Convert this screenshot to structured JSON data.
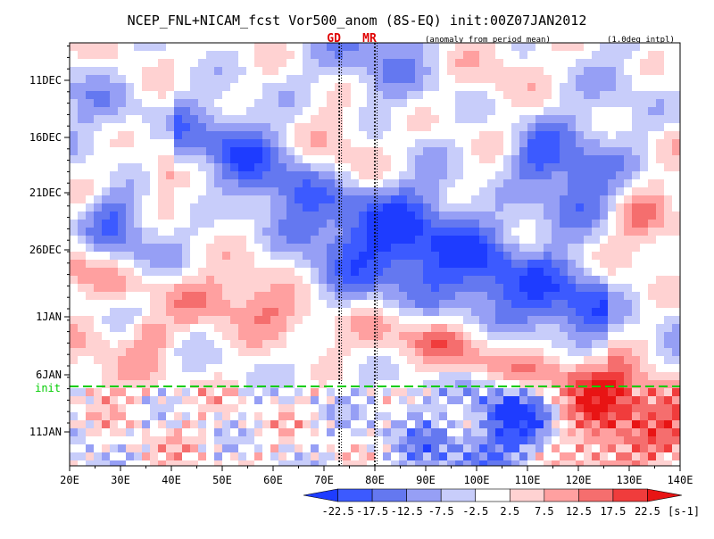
{
  "chart_data": {
    "type": "heatmap",
    "title": "NCEP_FNL+NICAM_fcst Vor500_anom (8S-EQ) init:00Z07JAN2012",
    "subtitle": "(anomaly from period mean)",
    "note": "(1.0deg intpl)",
    "xlabel": "",
    "ylabel": "",
    "x_ticks": [
      "20E",
      "30E",
      "40E",
      "50E",
      "60E",
      "70E",
      "80E",
      "90E",
      "100E",
      "110E",
      "120E",
      "130E",
      "140E"
    ],
    "x_range": [
      20,
      140
    ],
    "y_ticks": [
      "11DEC",
      "16DEC",
      "21DEC",
      "26DEC",
      "1JAN",
      "6JAN",
      "11JAN"
    ],
    "markers": [
      {
        "label": "GD",
        "lon": 73,
        "color": "#e00000"
      },
      {
        "label": "MR",
        "lon": 80,
        "color": "#e00000"
      }
    ],
    "init_line": {
      "label": "init",
      "date": "7JAN",
      "color": "#00cc00"
    },
    "colorbar": {
      "levels": [
        "-22.5",
        "-17.5",
        "-12.5",
        "-7.5",
        "-2.5",
        "2.5",
        "7.5",
        "12.5",
        "17.5",
        "22.5"
      ],
      "unit": "[s-1]",
      "colors": [
        "#1e3cff",
        "#3c5aff",
        "#6478f0",
        "#969ff5",
        "#c8cdfa",
        "#ffffff",
        "#ffd2d2",
        "#ffa0a0",
        "#f56e6e",
        "#f03c3c",
        "#e81414"
      ]
    }
  }
}
